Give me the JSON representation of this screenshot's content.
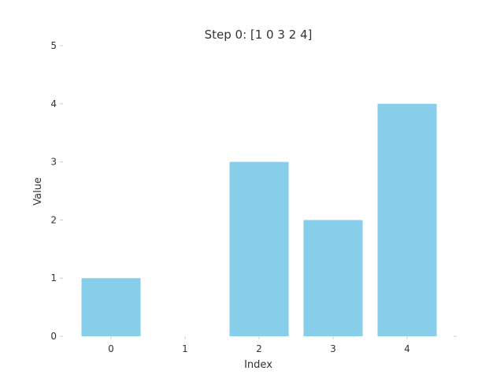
{
  "chart_data": {
    "type": "bar",
    "title": "Step 0: [1 0 3 2 4]",
    "xlabel": "Index",
    "ylabel": "Value",
    "categories": [
      "0",
      "1",
      "2",
      "3",
      "4"
    ],
    "values": [
      1,
      0,
      3,
      2,
      4
    ],
    "ylim": [
      0,
      5
    ],
    "yticks": [
      0,
      1,
      2,
      3,
      4,
      5
    ],
    "bar_color": "#87ceeb",
    "grid": false,
    "legend": false
  }
}
